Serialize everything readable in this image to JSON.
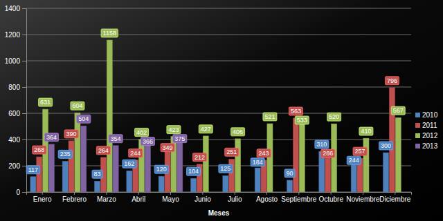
{
  "chart_data": {
    "type": "bar",
    "x_label": "Meses",
    "categories": [
      "Enero",
      "Febrero",
      "Marzo",
      "Abril",
      "Mayo",
      "Junio",
      "Julio",
      "Agosto",
      "Septiembre",
      "Octubre",
      "Noviembre",
      "Diciembre"
    ],
    "series": [
      {
        "name": "2010",
        "color": "#4f81bd",
        "values": [
          117,
          235,
          83,
          162,
          120,
          104,
          125,
          184,
          90,
          310,
          244,
          300
        ]
      },
      {
        "name": "2011",
        "color": "#c0504d",
        "values": [
          268,
          390,
          264,
          244,
          349,
          212,
          251,
          243,
          563,
          286,
          257,
          796
        ]
      },
      {
        "name": "2012",
        "color": "#9bbb59",
        "values": [
          631,
          604,
          1158,
          402,
          423,
          427,
          406,
          521,
          533,
          520,
          410,
          567
        ]
      },
      {
        "name": "2013",
        "color": "#8064a2",
        "values": [
          364,
          504,
          354,
          366,
          375,
          null,
          null,
          null,
          null,
          null,
          null,
          null
        ]
      }
    ],
    "ylim": [
      0,
      1400
    ],
    "yticks": [
      0,
      200,
      400,
      600,
      800,
      1000,
      1200,
      1400
    ],
    "grid": true,
    "legend": "right",
    "data_labels": true
  }
}
